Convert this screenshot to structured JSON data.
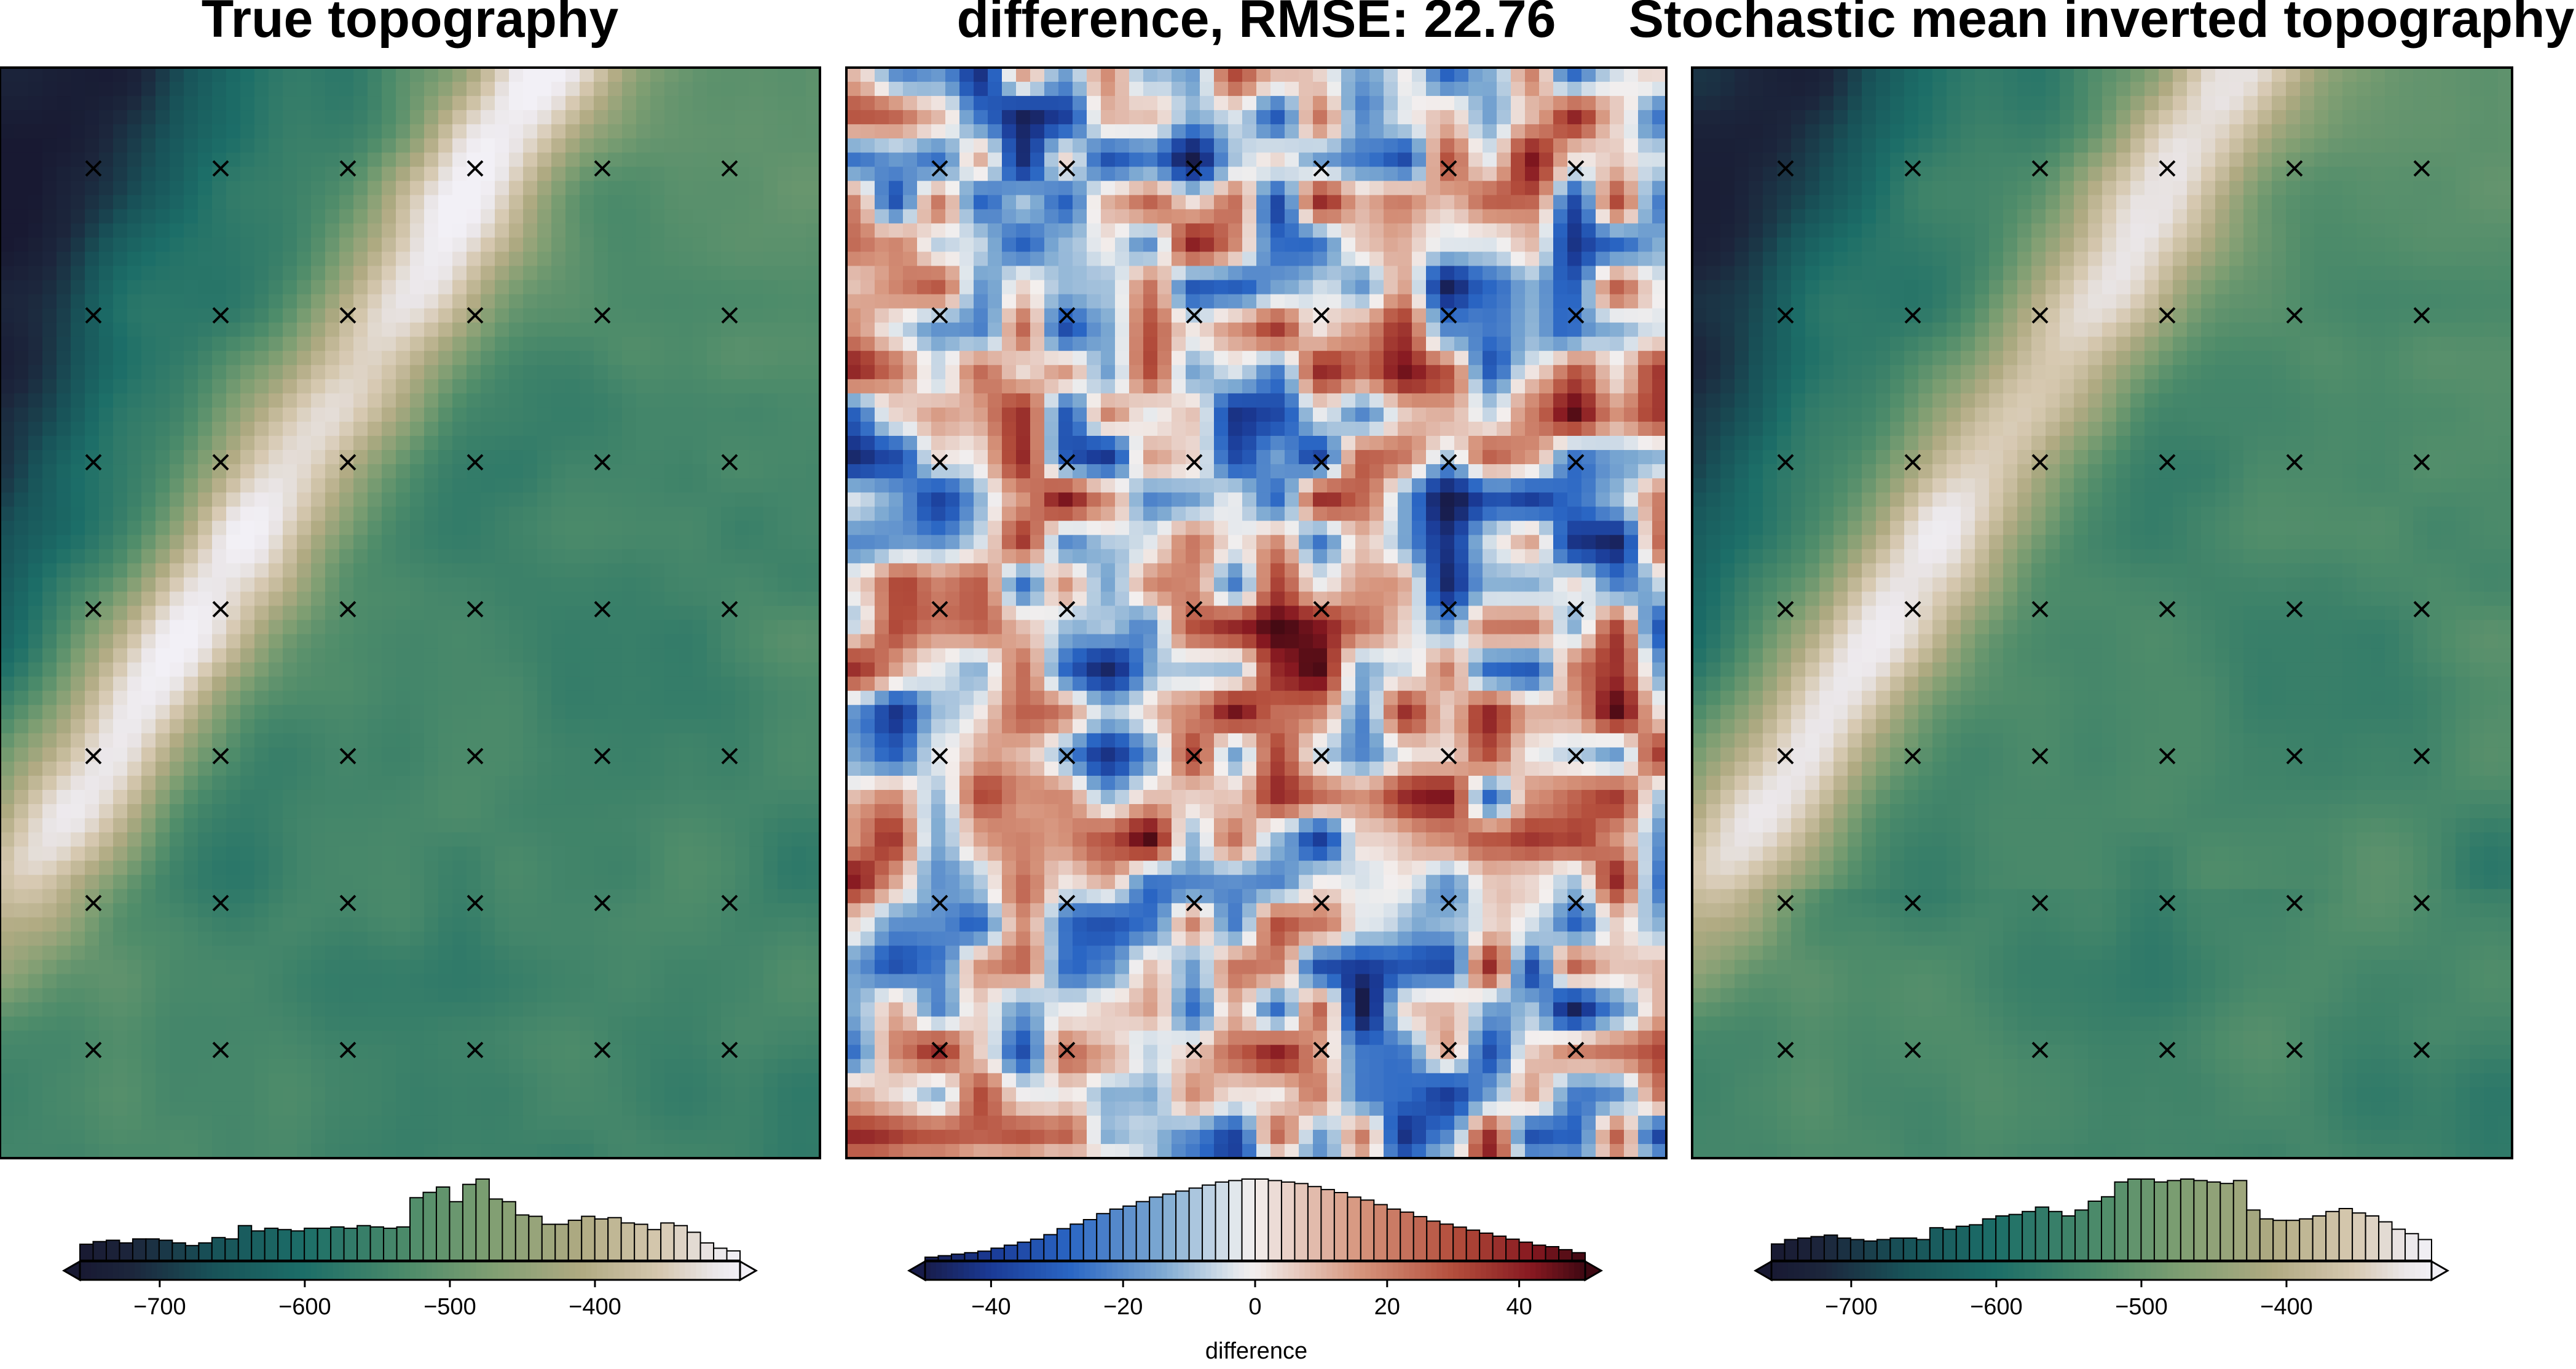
{
  "chart_data": [
    {
      "type": "heatmap",
      "title": "True topography",
      "colormap": "earth (dark navy - teal - green - tan - white)",
      "grid_points_shown": true,
      "colorbar": {
        "range": [
          -755,
          -300
        ],
        "ticks": [
          -700,
          -600,
          -500,
          -400
        ],
        "tick_labels": [
          "−700",
          "−600",
          "−500",
          "−400"
        ],
        "extend": "both",
        "label": "",
        "histogram_counts": [
          12,
          14,
          15,
          13,
          16,
          16,
          15,
          13,
          11,
          13,
          17,
          16,
          26,
          22,
          24,
          23,
          22,
          24,
          24,
          25,
          24,
          26,
          25,
          24,
          25,
          47,
          51,
          55,
          44,
          57,
          61,
          46,
          44,
          34,
          33,
          27,
          27,
          30,
          33,
          31,
          32,
          28,
          27,
          23,
          28,
          26,
          21,
          13,
          9,
          7
        ]
      }
    },
    {
      "type": "heatmap",
      "title": "difference, RMSE: 22.76",
      "colormap": "balance (blue - white - red)",
      "grid_points_shown": true,
      "colorbar": {
        "range": [
          -50,
          50
        ],
        "ticks": [
          -40,
          -20,
          0,
          20,
          40
        ],
        "tick_labels": [
          "−40",
          "−20",
          "0",
          "20",
          "40"
        ],
        "extend": "both",
        "label": "difference",
        "histogram_counts": [
          2,
          3,
          4,
          5,
          6,
          8,
          10,
          12,
          14,
          17,
          21,
          24,
          27,
          31,
          34,
          36,
          39,
          42,
          44,
          46,
          48,
          50,
          52,
          53,
          54,
          54,
          53,
          52,
          51,
          49,
          47,
          45,
          42,
          40,
          37,
          34,
          32,
          29,
          26,
          24,
          22,
          20,
          18,
          16,
          14,
          12,
          10,
          9,
          7,
          5
        ]
      }
    },
    {
      "type": "heatmap",
      "title": "Stochastic mean inverted topography",
      "colormap": "earth (dark navy - teal - green - tan - white)",
      "grid_points_shown": true,
      "colorbar": {
        "range": [
          -755,
          -300
        ],
        "ticks": [
          -700,
          -600,
          -500,
          -400
        ],
        "tick_labels": [
          "−700",
          "−600",
          "−500",
          "−400"
        ],
        "extend": "both",
        "label": "",
        "histogram_counts": [
          11,
          14,
          15,
          16,
          17,
          15,
          14,
          13,
          14,
          15,
          15,
          14,
          22,
          21,
          23,
          24,
          28,
          30,
          31,
          33,
          36,
          33,
          30,
          34,
          40,
          43,
          53,
          55,
          55,
          53,
          54,
          55,
          54,
          53,
          52,
          54,
          34,
          28,
          27,
          27,
          28,
          30,
          33,
          35,
          32,
          30,
          26,
          21,
          18,
          14
        ]
      }
    }
  ],
  "figure": {
    "colors": {
      "frame": "#000000",
      "marker": "#000000",
      "background": "#ffffff"
    },
    "marker_symbol": "x"
  }
}
